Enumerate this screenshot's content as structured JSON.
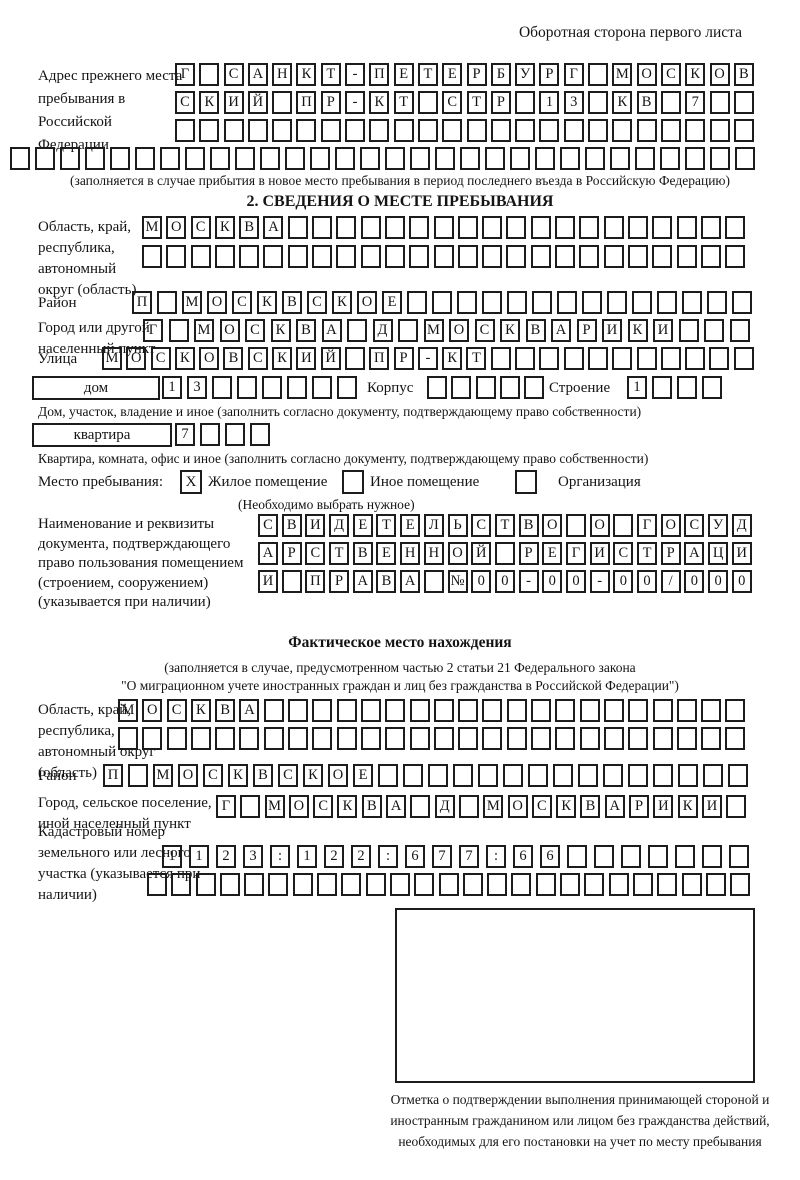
{
  "page": {
    "header_note": "Оборотная сторона первого листа"
  },
  "prev_address": {
    "label": "Адрес прежнего места пребывания в Российской Федерации",
    "rows": [
      {
        "text": "Г САНКТ-ПЕТЕРБУРГ МОСКОВ",
        "len": 24
      },
      {
        "text": "СКИЙ ПР-КТ СТР 13 КВ 7",
        "len": 24
      },
      {
        "text": "",
        "len": 24
      },
      {
        "text": "",
        "len": 30
      }
    ],
    "note": "(заполняется в случае прибытия в новое место пребывания в период последнего въезда в Российскую Федерацию)"
  },
  "section2": {
    "title": "2. СВЕДЕНИЯ О МЕСТЕ ПРЕБЫВАНИЯ",
    "region": {
      "label": "Область, край, республика, автономный округ (область)",
      "rows": [
        {
          "text": "МОСКВА",
          "len": 25
        },
        {
          "text": "",
          "len": 25
        }
      ]
    },
    "district": {
      "label": "Район",
      "cells": {
        "text": "П МОСКВСКОЕ",
        "len": 25
      }
    },
    "city": {
      "label": "Город или другой населенный пункт",
      "cells": {
        "text": "Г МОСКВА Д МОСКВАРИКИ",
        "len": 24
      }
    },
    "street": {
      "label": "Улица",
      "cells": {
        "text": "МОСКОВСКИЙ ПР-КТ",
        "len": 27
      }
    },
    "house": {
      "box_label": "дом",
      "cells": {
        "text": "13",
        "len": 8
      },
      "korpus_label": "Корпус",
      "korpus_cells": {
        "text": "",
        "len": 5
      },
      "stroenie_label": "Строение",
      "stroenie_cells": {
        "text": "1",
        "len": 4
      }
    },
    "house_note": "Дом, участок, владение и иное (заполнить согласно документу, подтверждающему право собственности)",
    "apartment": {
      "box_label": "квартира",
      "cells": {
        "text": "7",
        "len": 4
      }
    },
    "apartment_note": "Квартира, комната, офис и иное (заполнить согласно документу, подтверждающему право собственности)",
    "stay": {
      "label": "Место пребывания:",
      "options": [
        {
          "label": "Жилое помещение",
          "mark": "X"
        },
        {
          "label": "Иное помещение",
          "mark": ""
        },
        {
          "label": "Организация",
          "mark": ""
        }
      ],
      "note": "(Необходимо выбрать нужное)"
    },
    "document": {
      "label": "Наименование и реквизиты документа, подтверждающего право пользования помещением (строением, сооружением) (указывается при наличии)",
      "rows": [
        {
          "text": "СВИДЕТЕЛЬСТВО О ГОСУД",
          "len": 21
        },
        {
          "text": "АРСТВЕННОЙ РЕГИСТРАЦИ",
          "len": 21
        },
        {
          "text": "И ПРАВА №00-00-00/000",
          "len": 21
        }
      ]
    }
  },
  "actual_location": {
    "title": "Фактическое место нахождения",
    "note1": "(заполняется в случае, предусмотренном частью 2 статьи 21 Федерального закона",
    "note2": "\"О миграционном учете иностранных граждан и лиц без гражданства в Российской Федерации\")",
    "region": {
      "label": "Область, край, республика, автономный округ (область)",
      "rows": [
        {
          "text": "МОСКВА",
          "len": 26
        },
        {
          "text": "",
          "len": 26
        }
      ]
    },
    "district": {
      "label": "Район",
      "cells": {
        "text": "П МОСКВСКОЕ",
        "len": 26
      }
    },
    "city": {
      "label": "Город, сельское поселение, иной населенный пункт",
      "cells": {
        "text": "Г МОСКВА Д МОСКВАРИКИ",
        "len": 22
      }
    },
    "cadastral": {
      "label": "Кадастровый номер земельного или лесного участка (указывается при наличии)",
      "rows": [
        {
          "text": "1123:122:677:66",
          "len": 22
        },
        {
          "text": "",
          "len": 25
        }
      ]
    },
    "stamp_note": "Отметка о подтверждении выполнения принимающей стороной и иностранным гражданином или лицом без гражданства действий, необходимых для его постановки на учет по месту пребывания"
  }
}
